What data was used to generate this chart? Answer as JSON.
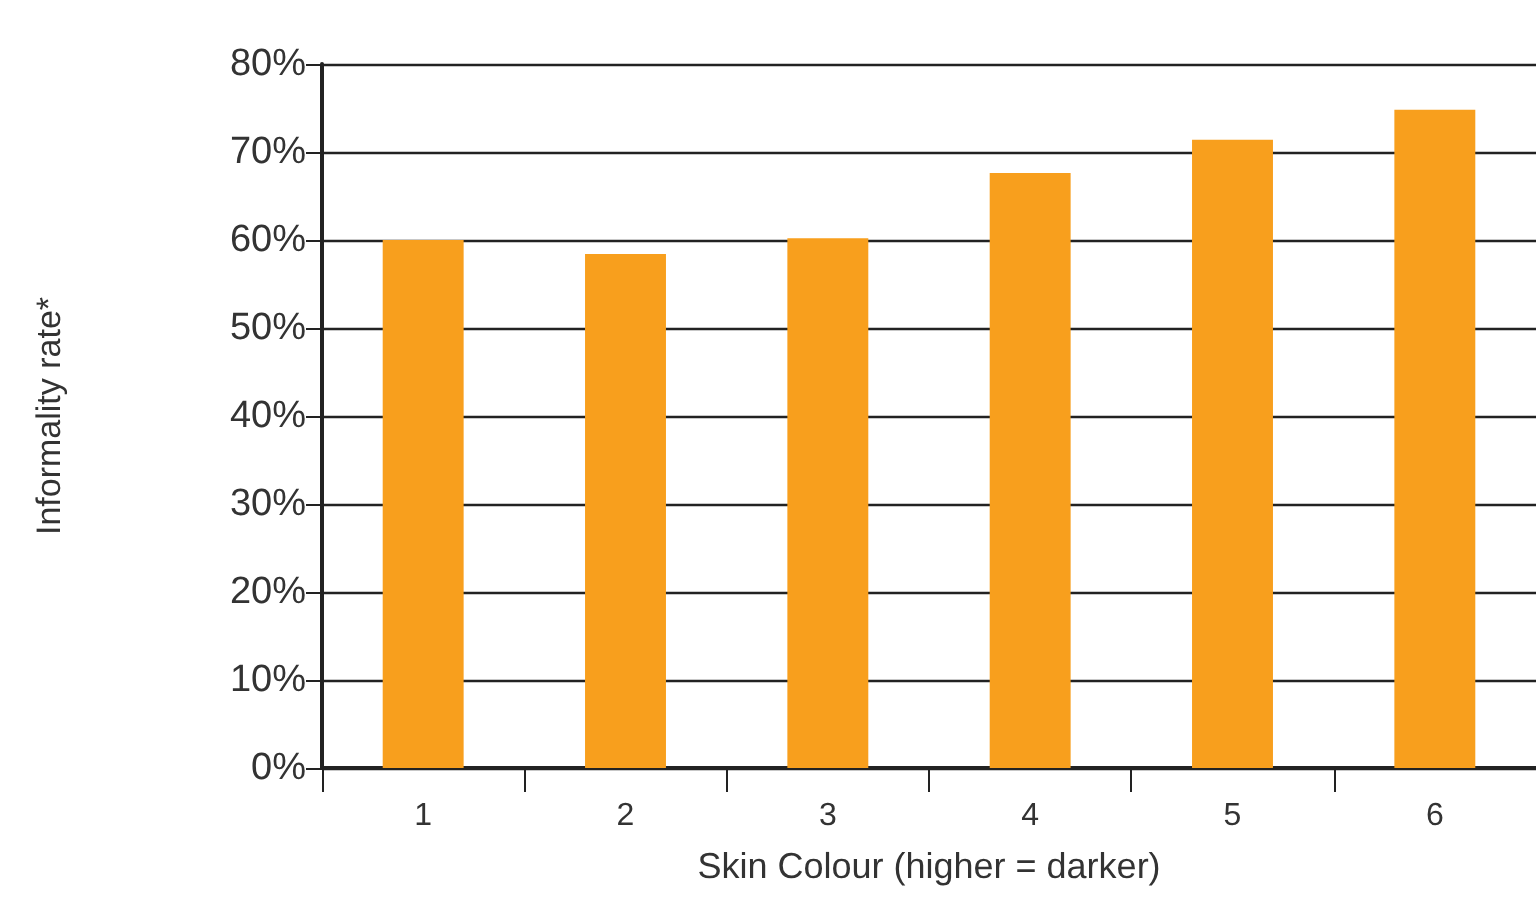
{
  "chart_data": {
    "type": "bar",
    "xlabel": "Skin Colour (higher = darker)",
    "ylabel": "Informality rate*",
    "categories": [
      "1",
      "2",
      "3",
      "4",
      "5",
      "6"
    ],
    "values": [
      60,
      58.4,
      60.2,
      67.6,
      71.4,
      74.8
    ],
    "color": "#f89f1d",
    "ylim": [
      0,
      80
    ],
    "yticks": [
      {
        "value": 0,
        "label": "0%"
      },
      {
        "value": 10,
        "label": "10%"
      },
      {
        "value": 20,
        "label": "20%"
      },
      {
        "value": 30,
        "label": "30%"
      },
      {
        "value": 40,
        "label": "40%"
      },
      {
        "value": 50,
        "label": "50%"
      },
      {
        "value": 60,
        "label": "60%"
      },
      {
        "value": 70,
        "label": "70%"
      },
      {
        "value": 80,
        "label": "80%"
      }
    ],
    "grid": "y"
  }
}
